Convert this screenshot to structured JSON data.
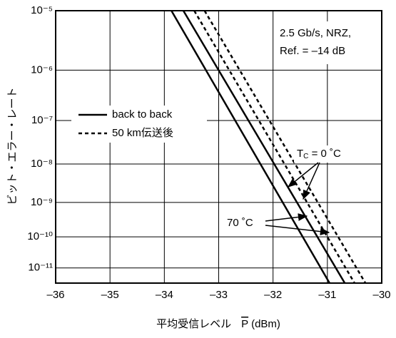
{
  "chart_data": {
    "type": "line",
    "yscale": "double-log",
    "xlabel": "平均受信レベル",
    "xlabel_symbol": "P",
    "xlabel_unit": "(dBm)",
    "ylabel": "ビット・エラー・レート",
    "xlim": [
      -36,
      -30
    ],
    "xticks": [
      {
        "value": -36,
        "label": "–36"
      },
      {
        "value": -35,
        "label": "–35"
      },
      {
        "value": -34,
        "label": "–34"
      },
      {
        "value": -33,
        "label": "–33"
      },
      {
        "value": -32,
        "label": "–32"
      },
      {
        "value": -31,
        "label": "–31"
      },
      {
        "value": -30,
        "label": "–30"
      }
    ],
    "ylim": [
      1e-05,
      3e-12
    ],
    "yticks": [
      {
        "value": 1e-05,
        "label": "10⁻⁵"
      },
      {
        "value": 1e-06,
        "label": "10⁻⁶"
      },
      {
        "value": 1e-07,
        "label": "10⁻⁷"
      },
      {
        "value": 1e-08,
        "label": "10⁻⁸"
      },
      {
        "value": 1e-09,
        "label": "10⁻⁹"
      },
      {
        "value": 1e-10,
        "label": "10⁻¹⁰"
      },
      {
        "value": 1e-11,
        "label": "10⁻¹¹"
      }
    ],
    "grid": true,
    "legend": "upper left",
    "series": [
      {
        "name": "back to back",
        "color": "#000",
        "dash": "solid",
        "lines": [
          {
            "x": [
              -33.87,
              -30.96
            ],
            "values": [
              1e-05,
              3e-12
            ]
          },
          {
            "x": [
              -33.65,
              -30.68
            ],
            "values": [
              1e-05,
              3e-12
            ]
          }
        ]
      },
      {
        "name": "50 km伝送後",
        "color": "#000",
        "dash": "dashed",
        "lines": [
          {
            "x": [
              -33.45,
              -30.5
            ],
            "values": [
              1e-05,
              3e-12
            ]
          },
          {
            "x": [
              -33.26,
              -30.3
            ],
            "values": [
              1e-05,
              3e-12
            ]
          }
        ]
      }
    ],
    "info_box": [
      "2.5 Gb/s, NRZ,",
      "Ref. = –14 dB"
    ],
    "tc_label": {
      "main": "T",
      "sub": "C",
      "rest": " = 0 ˚C"
    },
    "hot_label": "70 ˚C"
  }
}
